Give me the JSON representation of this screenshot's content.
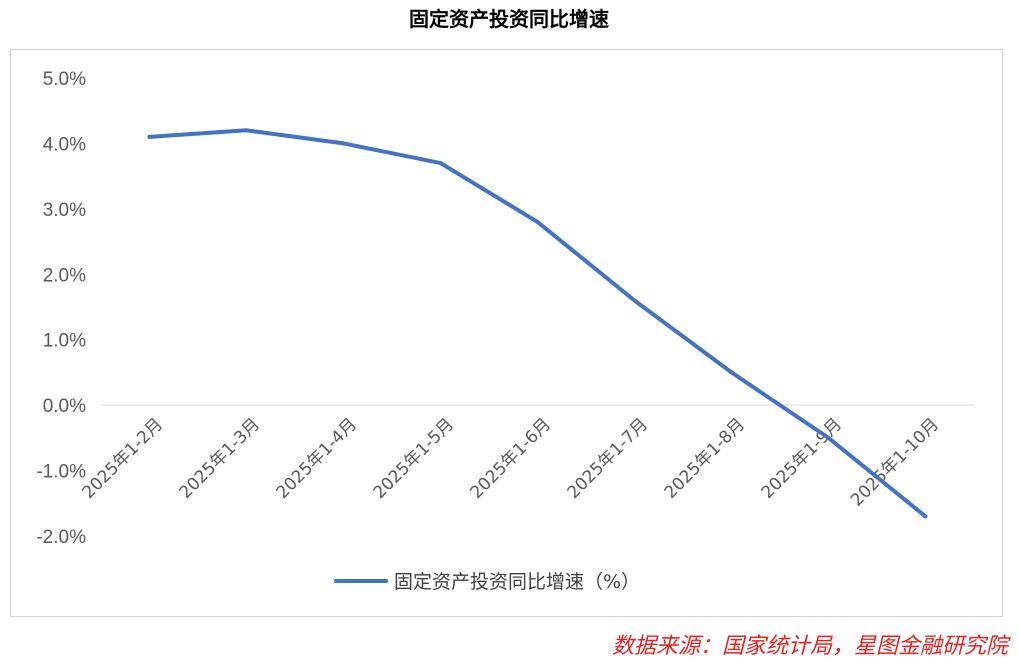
{
  "chart_data": {
    "type": "line",
    "title": "固定资产投资同比增速",
    "categories": [
      "2025年1-2月",
      "2025年1-3月",
      "2025年1-4月",
      "2025年1-5月",
      "2025年1-6月",
      "2025年1-7月",
      "2025年1-8月",
      "2025年1-9月",
      "2025年1-10月"
    ],
    "series": [
      {
        "name": "固定资产投资同比增速（%）",
        "values": [
          4.1,
          4.2,
          4.0,
          3.7,
          2.8,
          1.6,
          0.5,
          -0.5,
          -1.7
        ],
        "color": "#4472c4"
      }
    ],
    "ylim": [
      -2.0,
      5.0
    ],
    "yticks": [
      "5.0%",
      "4.0%",
      "3.0%",
      "2.0%",
      "1.0%",
      "0.0%",
      "-1.0%",
      "-2.0%"
    ],
    "grid": false,
    "legend": "bottom"
  },
  "source": "数据来源：国家统计局，星图金融研究院"
}
